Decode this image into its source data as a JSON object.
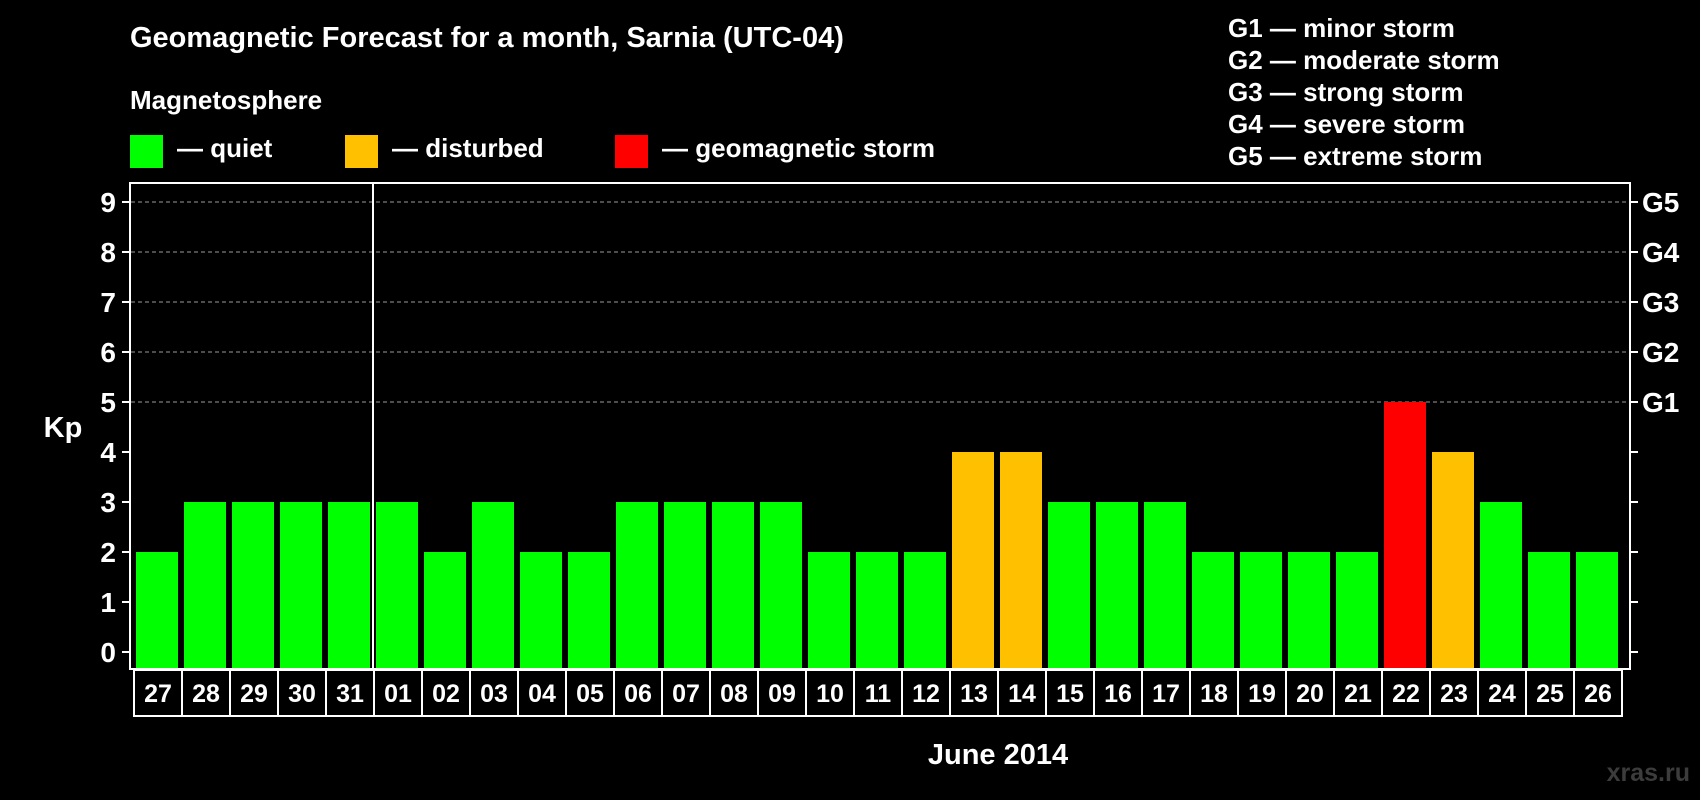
{
  "chart_data": {
    "type": "bar",
    "title": "Geomagnetic Forecast for a month, Sarnia (UTC-04)",
    "subtitle": "Magnetosphere",
    "xlabel": "June 2014",
    "ylabel": "Kp",
    "ylim": [
      0,
      9
    ],
    "yticks": [
      0,
      1,
      2,
      3,
      4,
      5,
      6,
      7,
      8,
      9
    ],
    "grid": "dashed at Kp 5-9",
    "categories": [
      "27",
      "28",
      "29",
      "30",
      "31",
      "01",
      "02",
      "03",
      "04",
      "05",
      "06",
      "07",
      "08",
      "09",
      "10",
      "11",
      "12",
      "13",
      "14",
      "15",
      "16",
      "17",
      "18",
      "19",
      "20",
      "21",
      "22",
      "23",
      "24",
      "25",
      "26"
    ],
    "values": [
      2,
      3,
      3,
      3,
      3,
      3,
      2,
      3,
      2,
      2,
      3,
      3,
      3,
      3,
      2,
      2,
      2,
      4,
      4,
      3,
      3,
      3,
      2,
      2,
      2,
      2,
      5,
      4,
      3,
      2,
      2
    ],
    "month_divider_after": "31",
    "legend": [
      {
        "label": "— quiet",
        "color": "#00ff00"
      },
      {
        "label": "— disturbed",
        "color": "#ffc000"
      },
      {
        "label": "— geomagnetic storm",
        "color": "#ff0000"
      }
    ],
    "storm_levels": [
      {
        "level": "G1",
        "kp": 5
      },
      {
        "level": "G2",
        "kp": 6
      },
      {
        "level": "G3",
        "kp": 7
      },
      {
        "level": "G4",
        "kp": 8
      },
      {
        "level": "G5",
        "kp": 9
      }
    ],
    "storm_scale": [
      "G1 — minor storm",
      "G2 — moderate storm",
      "G3 — strong storm",
      "G4 — severe storm",
      "G5 — extreme storm"
    ]
  },
  "watermark": "xras.ru",
  "colors": {
    "quiet": "#00ff00",
    "disturbed": "#ffc000",
    "storm": "#ff0000",
    "background": "#000000",
    "axis": "#ffffff",
    "grid": "#9a9a9a"
  }
}
